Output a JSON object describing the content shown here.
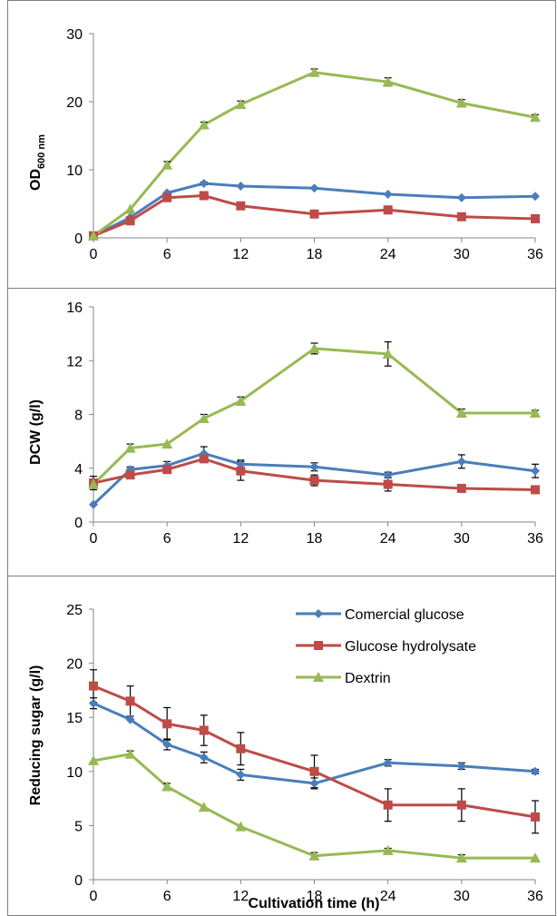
{
  "colors": {
    "commercial": "#4A7EBB",
    "hydrolysate": "#BE4B48",
    "dextrin": "#98B954",
    "axis": "#868686",
    "frame": "#7f7f7f",
    "errorbar": "#000000"
  },
  "legend": {
    "commercial": "Comercial glucose",
    "hydrolysate": "Glucose hydrolysate",
    "dextrin": "Dextrin"
  },
  "chart_data": [
    {
      "type": "line",
      "ylabel_main": "OD",
      "ylabel_sub": "600 nm",
      "xlabel": "",
      "x": [
        0,
        3,
        6,
        9,
        12,
        18,
        24,
        30,
        36
      ],
      "xticks": [
        "0",
        "6",
        "12",
        "18",
        "24",
        "30",
        "36"
      ],
      "yticks": [
        "0",
        "10",
        "20",
        "30"
      ],
      "ylim": [
        0,
        30
      ],
      "xlim": [
        0,
        36
      ],
      "legend": "none",
      "series": [
        {
          "key": "commercial",
          "marker": "diamond",
          "values": [
            0.3,
            3.0,
            6.6,
            8.0,
            7.6,
            7.3,
            6.4,
            5.9,
            6.1
          ],
          "errors": [
            0,
            0,
            0,
            0.2,
            0,
            0,
            0,
            0,
            0
          ]
        },
        {
          "key": "hydrolysate",
          "marker": "square",
          "values": [
            0.3,
            2.5,
            5.9,
            6.2,
            4.7,
            3.5,
            4.1,
            3.1,
            2.8
          ],
          "errors": [
            0,
            0,
            0,
            0,
            0,
            0,
            0,
            0,
            0
          ]
        },
        {
          "key": "dextrin",
          "marker": "triangle",
          "values": [
            0.3,
            4.2,
            10.7,
            16.6,
            19.6,
            24.3,
            22.9,
            19.8,
            17.7
          ],
          "errors": [
            0,
            0,
            0.5,
            0.4,
            0.5,
            0.5,
            0.6,
            0.5,
            0.4
          ]
        }
      ]
    },
    {
      "type": "line",
      "ylabel_main": "DCW (g/l)",
      "ylabel_sub": "",
      "xlabel": "",
      "x": [
        0,
        3,
        6,
        9,
        12,
        18,
        24,
        30,
        36
      ],
      "xticks": [
        "0",
        "6",
        "12",
        "18",
        "24",
        "30",
        "36"
      ],
      "yticks": [
        "0",
        "4",
        "8",
        "12",
        "16"
      ],
      "ylim": [
        0,
        16
      ],
      "xlim": [
        0,
        36
      ],
      "legend": "none",
      "series": [
        {
          "key": "commercial",
          "marker": "diamond",
          "values": [
            1.3,
            3.9,
            4.2,
            5.1,
            4.3,
            4.1,
            3.5,
            4.5,
            3.8
          ],
          "errors": [
            0,
            0.2,
            0.3,
            0.5,
            0.3,
            0.3,
            0.2,
            0.5,
            0.5
          ]
        },
        {
          "key": "hydrolysate",
          "marker": "square",
          "values": [
            2.9,
            3.5,
            3.9,
            4.7,
            3.8,
            3.1,
            2.8,
            2.5,
            2.4
          ],
          "errors": [
            0.5,
            0,
            0,
            0,
            0.7,
            0.4,
            0.5,
            0,
            0
          ]
        },
        {
          "key": "dextrin",
          "marker": "triangle",
          "values": [
            2.8,
            5.5,
            5.8,
            7.7,
            9.0,
            12.9,
            12.5,
            8.1,
            8.1
          ],
          "errors": [
            0,
            0.3,
            0,
            0.3,
            0.3,
            0.4,
            0.9,
            0.3,
            0.2
          ]
        }
      ]
    },
    {
      "type": "line",
      "ylabel_main": "Reducing sugar (g/l)",
      "ylabel_sub": "",
      "xlabel": "Cultivation time (h)",
      "x": [
        0,
        3,
        6,
        9,
        12,
        18,
        24,
        30,
        36
      ],
      "xticks": [
        "0",
        "6",
        "12",
        "18",
        "24",
        "30",
        "36"
      ],
      "yticks": [
        "0",
        "5",
        "10",
        "15",
        "20",
        "25"
      ],
      "ylim": [
        0,
        25
      ],
      "xlim": [
        0,
        36
      ],
      "legend": "top-right",
      "series": [
        {
          "key": "commercial",
          "marker": "diamond",
          "values": [
            16.3,
            14.8,
            12.5,
            11.3,
            9.7,
            8.9,
            10.8,
            10.5,
            10.0
          ],
          "errors": [
            0.5,
            0,
            0.5,
            0.5,
            0.5,
            0.5,
            0.3,
            0.3,
            0.2
          ]
        },
        {
          "key": "hydrolysate",
          "marker": "square",
          "values": [
            17.9,
            16.5,
            14.4,
            13.8,
            12.1,
            10.0,
            6.9,
            6.9,
            5.8
          ],
          "errors": [
            1.5,
            1.4,
            1.5,
            1.4,
            1.5,
            1.5,
            1.5,
            1.5,
            1.5
          ]
        },
        {
          "key": "dextrin",
          "marker": "triangle",
          "values": [
            11.0,
            11.6,
            8.6,
            6.7,
            4.9,
            2.2,
            2.7,
            2.0,
            2.0
          ],
          "errors": [
            0,
            0.3,
            0.3,
            0,
            0,
            0.3,
            0.2,
            0.3,
            0
          ]
        }
      ]
    }
  ]
}
